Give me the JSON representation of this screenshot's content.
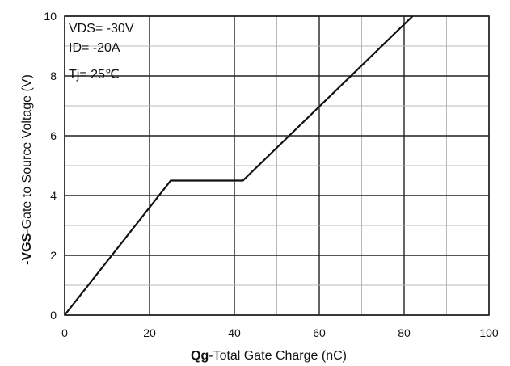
{
  "chart_data": {
    "type": "line",
    "title": "",
    "xlabel": {
      "bold_prefix": "Qg",
      "rest": "-Total  Gate Charge (nC)"
    },
    "ylabel": {
      "bold_prefix": "-VGS",
      "rest": "-Gate to Source Voltage (V)"
    },
    "xlim": [
      0,
      100
    ],
    "ylim": [
      0,
      10
    ],
    "x_ticks": [
      0,
      20,
      40,
      60,
      80,
      100
    ],
    "y_ticks": [
      0,
      2,
      4,
      6,
      8,
      10
    ],
    "x_minor_step": 10,
    "y_minor_step": 1,
    "grid": true,
    "annotations": [
      "VDS= -30V",
      "ID= -20A",
      "Tj= 25℃"
    ],
    "series": [
      {
        "x": [
          0,
          25,
          42,
          82
        ],
        "y": [
          0,
          4.5,
          4.5,
          10
        ]
      }
    ],
    "colors": {
      "line": "#111111",
      "grid_major": "#222222",
      "grid_minor": "#b8b8b8",
      "frame": "#222222"
    }
  }
}
